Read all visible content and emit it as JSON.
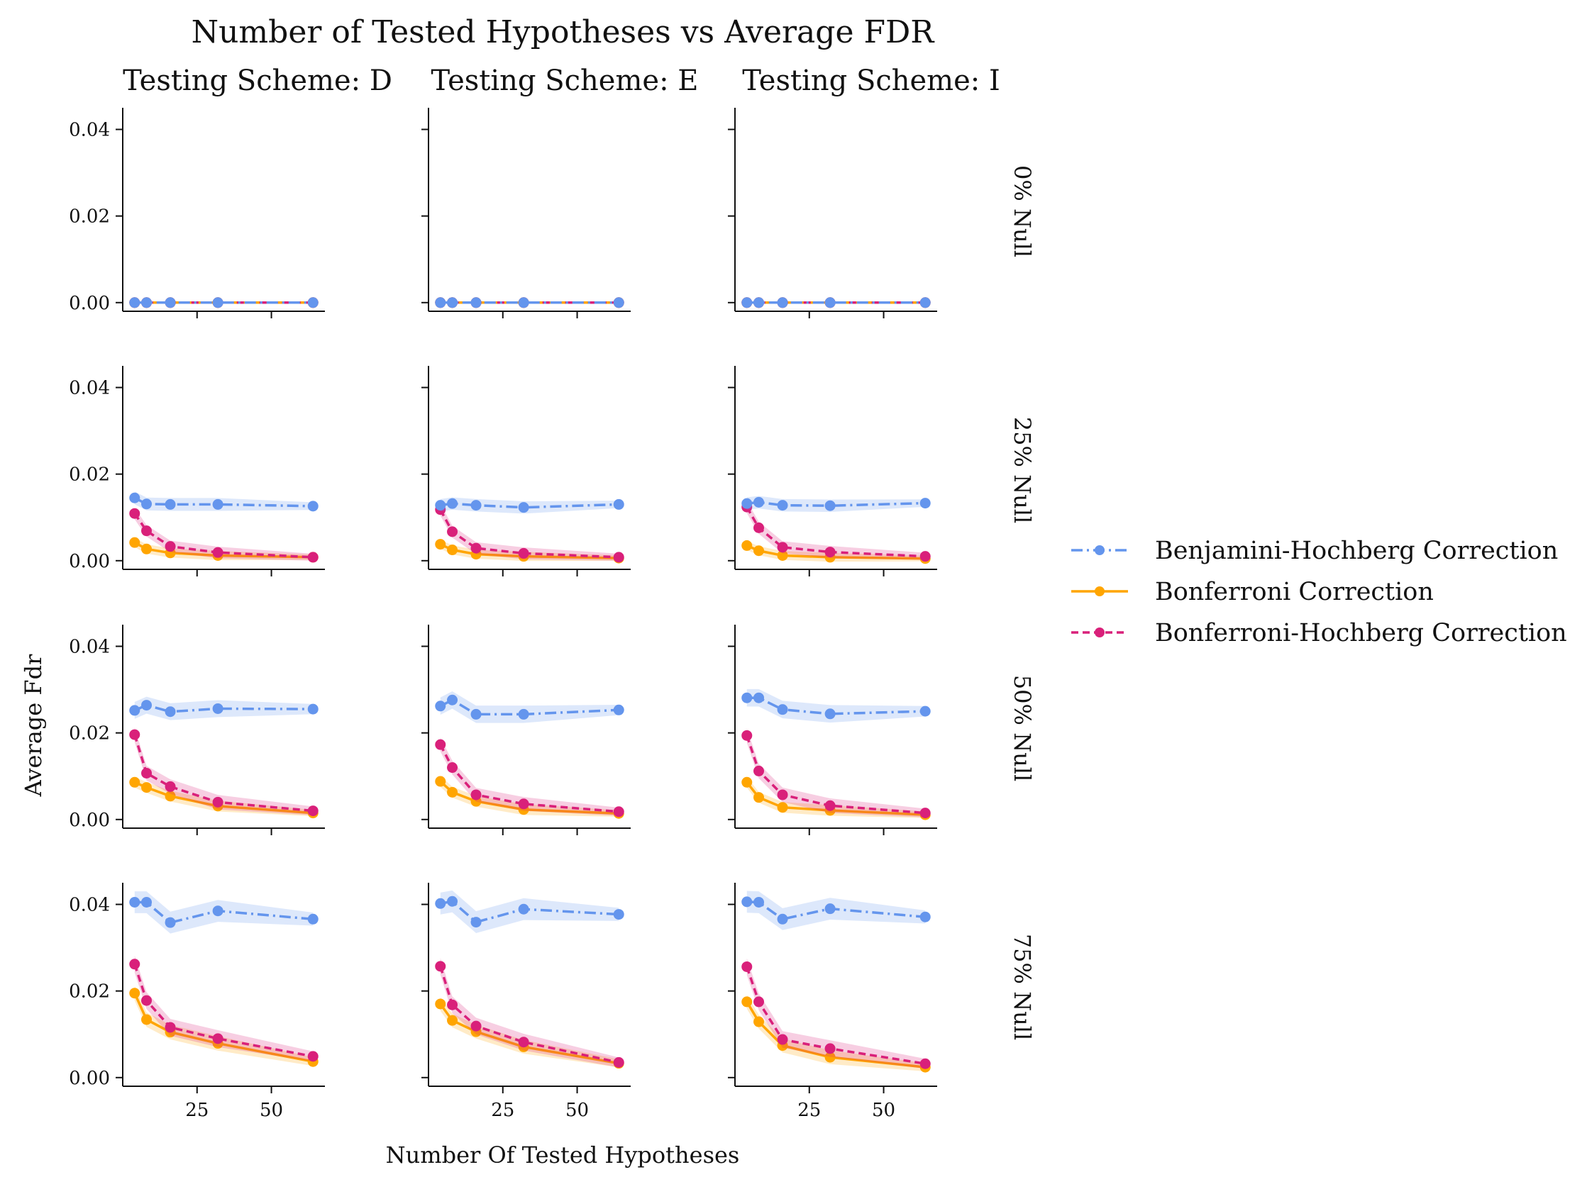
{
  "chart_data": {
    "type": "line",
    "title": "Number of Tested Hypotheses vs Average FDR",
    "xlabel": "Number Of Tested Hypotheses",
    "ylabel": "Average Fdr",
    "xlim": [
      0,
      68
    ],
    "ylim": [
      -0.002,
      0.045
    ],
    "xticks": [
      25,
      50
    ],
    "yticks": [
      0.0,
      0.02,
      0.04
    ],
    "ytick_labels": [
      "0.00",
      "0.02",
      "0.04"
    ],
    "xtick_labels": [
      "25",
      "50"
    ],
    "x": [
      4,
      8,
      16,
      32,
      64
    ],
    "columns": [
      "Testing Scheme: D",
      "Testing Scheme: E",
      "Testing Scheme: I"
    ],
    "rows": [
      "0% Null",
      "25% Null",
      "50% Null",
      "75% Null"
    ],
    "grid": false,
    "legend_position": "right",
    "series_defs": [
      {
        "name": "Benjamini-Hochberg Correction",
        "color": "#6495ED",
        "dash": "dashdot"
      },
      {
        "name": "Bonferroni Correction",
        "color": "#FFA500",
        "dash": "solid"
      },
      {
        "name": "Bonferroni-Hochberg Correction",
        "color": "#D9207A",
        "dash": "dashed"
      }
    ],
    "panels": [
      [
        [
          [
            0,
            0,
            0,
            0,
            0
          ],
          [
            0,
            0,
            0,
            0,
            0
          ],
          [
            0,
            0,
            0,
            0,
            0
          ]
        ],
        [
          [
            0,
            0,
            0,
            0,
            0
          ],
          [
            0,
            0,
            0,
            0,
            0
          ],
          [
            0,
            0,
            0,
            0,
            0
          ]
        ],
        [
          [
            0,
            0,
            0,
            0,
            0
          ],
          [
            0,
            0,
            0,
            0,
            0
          ],
          [
            0,
            0,
            0,
            0,
            0
          ]
        ]
      ],
      [
        [
          [
            0.0145,
            0.0131,
            0.013,
            0.013,
            0.0126
          ],
          [
            0.0042,
            0.0027,
            0.0018,
            0.0012,
            0.0008
          ],
          [
            0.0109,
            0.0069,
            0.0033,
            0.0019,
            0.0008
          ]
        ],
        [
          [
            0.0128,
            0.0132,
            0.0128,
            0.0123,
            0.013
          ],
          [
            0.0038,
            0.0025,
            0.0015,
            0.001,
            0.0006
          ],
          [
            0.0118,
            0.0067,
            0.0029,
            0.0017,
            0.0008
          ]
        ],
        [
          [
            0.0132,
            0.0135,
            0.0128,
            0.0127,
            0.0133
          ],
          [
            0.0035,
            0.0023,
            0.0012,
            0.0008,
            0.0005
          ],
          [
            0.0124,
            0.0076,
            0.0031,
            0.002,
            0.001
          ]
        ]
      ],
      [
        [
          [
            0.0252,
            0.0264,
            0.0249,
            0.0256,
            0.0255
          ],
          [
            0.0086,
            0.0074,
            0.0054,
            0.0031,
            0.0015
          ],
          [
            0.0196,
            0.0107,
            0.0076,
            0.004,
            0.002
          ]
        ],
        [
          [
            0.0262,
            0.0276,
            0.0243,
            0.0243,
            0.0253
          ],
          [
            0.0088,
            0.0063,
            0.0042,
            0.0023,
            0.0014
          ],
          [
            0.0173,
            0.012,
            0.0057,
            0.0036,
            0.0018
          ]
        ],
        [
          [
            0.0281,
            0.0281,
            0.0254,
            0.0244,
            0.025
          ],
          [
            0.0086,
            0.0051,
            0.0028,
            0.0021,
            0.0011
          ],
          [
            0.0194,
            0.0112,
            0.0057,
            0.0032,
            0.0015
          ]
        ]
      ],
      [
        [
          [
            0.0405,
            0.0405,
            0.0358,
            0.0385,
            0.0366
          ],
          [
            0.0195,
            0.0134,
            0.0105,
            0.0079,
            0.0037
          ],
          [
            0.0262,
            0.0178,
            0.0116,
            0.009,
            0.0049
          ]
        ],
        [
          [
            0.0402,
            0.0407,
            0.0359,
            0.0389,
            0.0377
          ],
          [
            0.017,
            0.0132,
            0.0106,
            0.0071,
            0.0033
          ],
          [
            0.0257,
            0.0168,
            0.0119,
            0.0082,
            0.0035
          ]
        ],
        [
          [
            0.0406,
            0.0405,
            0.0366,
            0.039,
            0.0371
          ],
          [
            0.0175,
            0.0129,
            0.0074,
            0.0047,
            0.0024
          ],
          [
            0.0256,
            0.0175,
            0.0088,
            0.0067,
            0.0032
          ]
        ]
      ]
    ]
  }
}
